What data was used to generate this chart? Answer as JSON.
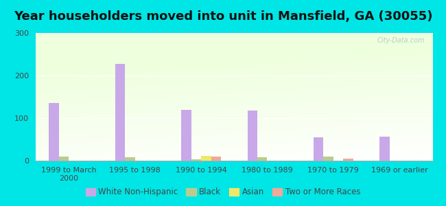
{
  "title": "Year householders moved into unit in Mansfield, GA (30055)",
  "categories": [
    "1999 to March\n2000",
    "1995 to 1998",
    "1990 to 1994",
    "1980 to 1989",
    "1970 to 1979",
    "1969 or earlier"
  ],
  "series": {
    "White Non-Hispanic": [
      135,
      227,
      120,
      118,
      55,
      57
    ],
    "Black": [
      10,
      8,
      3,
      8,
      9,
      0
    ],
    "Asian": [
      0,
      0,
      12,
      0,
      0,
      0
    ],
    "Two or More Races": [
      0,
      0,
      9,
      0,
      5,
      0
    ]
  },
  "colors": {
    "White Non-Hispanic": "#c8a8e8",
    "Black": "#b8cc90",
    "Asian": "#f0e868",
    "Two or More Races": "#f0a898"
  },
  "ylim": [
    0,
    300
  ],
  "yticks": [
    0,
    100,
    200,
    300
  ],
  "background_color": "#00e5e5",
  "bar_width": 0.15,
  "title_fontsize": 13,
  "tick_fontsize": 8,
  "legend_fontsize": 8.5,
  "watermark": "City-Data.com"
}
